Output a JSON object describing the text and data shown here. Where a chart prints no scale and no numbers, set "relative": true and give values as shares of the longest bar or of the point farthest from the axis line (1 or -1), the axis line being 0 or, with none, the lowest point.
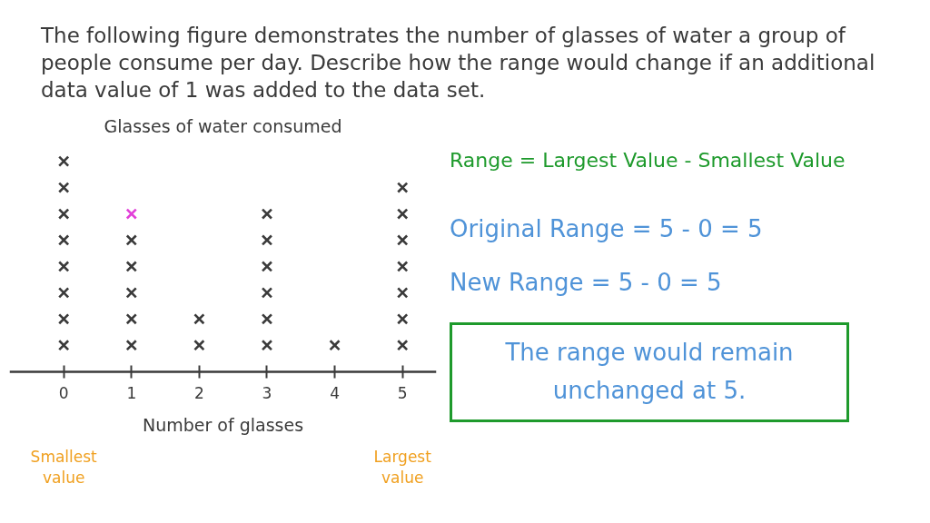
{
  "chart_data": {
    "type": "scatter",
    "title": "Glasses of water consumed",
    "xlabel": "Number of glasses",
    "relative": true,
    "marker": "cross",
    "xlim": [
      -0.8,
      5.5
    ],
    "xticks": [
      0,
      1,
      2,
      3,
      4,
      5
    ],
    "series": [
      {
        "color": "#3a3a3a",
        "x": [
          0,
          0,
          0,
          0,
          0,
          0,
          0,
          0,
          1,
          1,
          1,
          1,
          1,
          2,
          2,
          3,
          3,
          3,
          3,
          3,
          3,
          4,
          5,
          5,
          5,
          5,
          5,
          5,
          5
        ],
        "values": [
          0.125,
          0.25,
          0.375,
          0.5,
          0.625,
          0.75,
          0.875,
          1,
          0.125,
          0.25,
          0.375,
          0.5,
          0.625,
          0.125,
          0.25,
          0.125,
          0.25,
          0.375,
          0.5,
          0.625,
          0.75,
          0.125,
          0.125,
          0.25,
          0.375,
          0.5,
          0.625,
          0.75,
          0.875
        ]
      },
      {
        "color": "#e23fd8",
        "x": [
          1
        ],
        "values": [
          0.75
        ]
      }
    ],
    "annotations": [
      "The following figure demonstrates the number of glasses of water a group of people consume per day. Describe how the range would change if an additional data value of 1 was added to the data set.",
      "Smallest value",
      "Largest value",
      "Range = Largest Value - Smallest Value",
      "Original Range = 5 - 0 = 5",
      "New Range = 5 - 0 = 5",
      "The range would remain unchanged at 5."
    ]
  }
}
